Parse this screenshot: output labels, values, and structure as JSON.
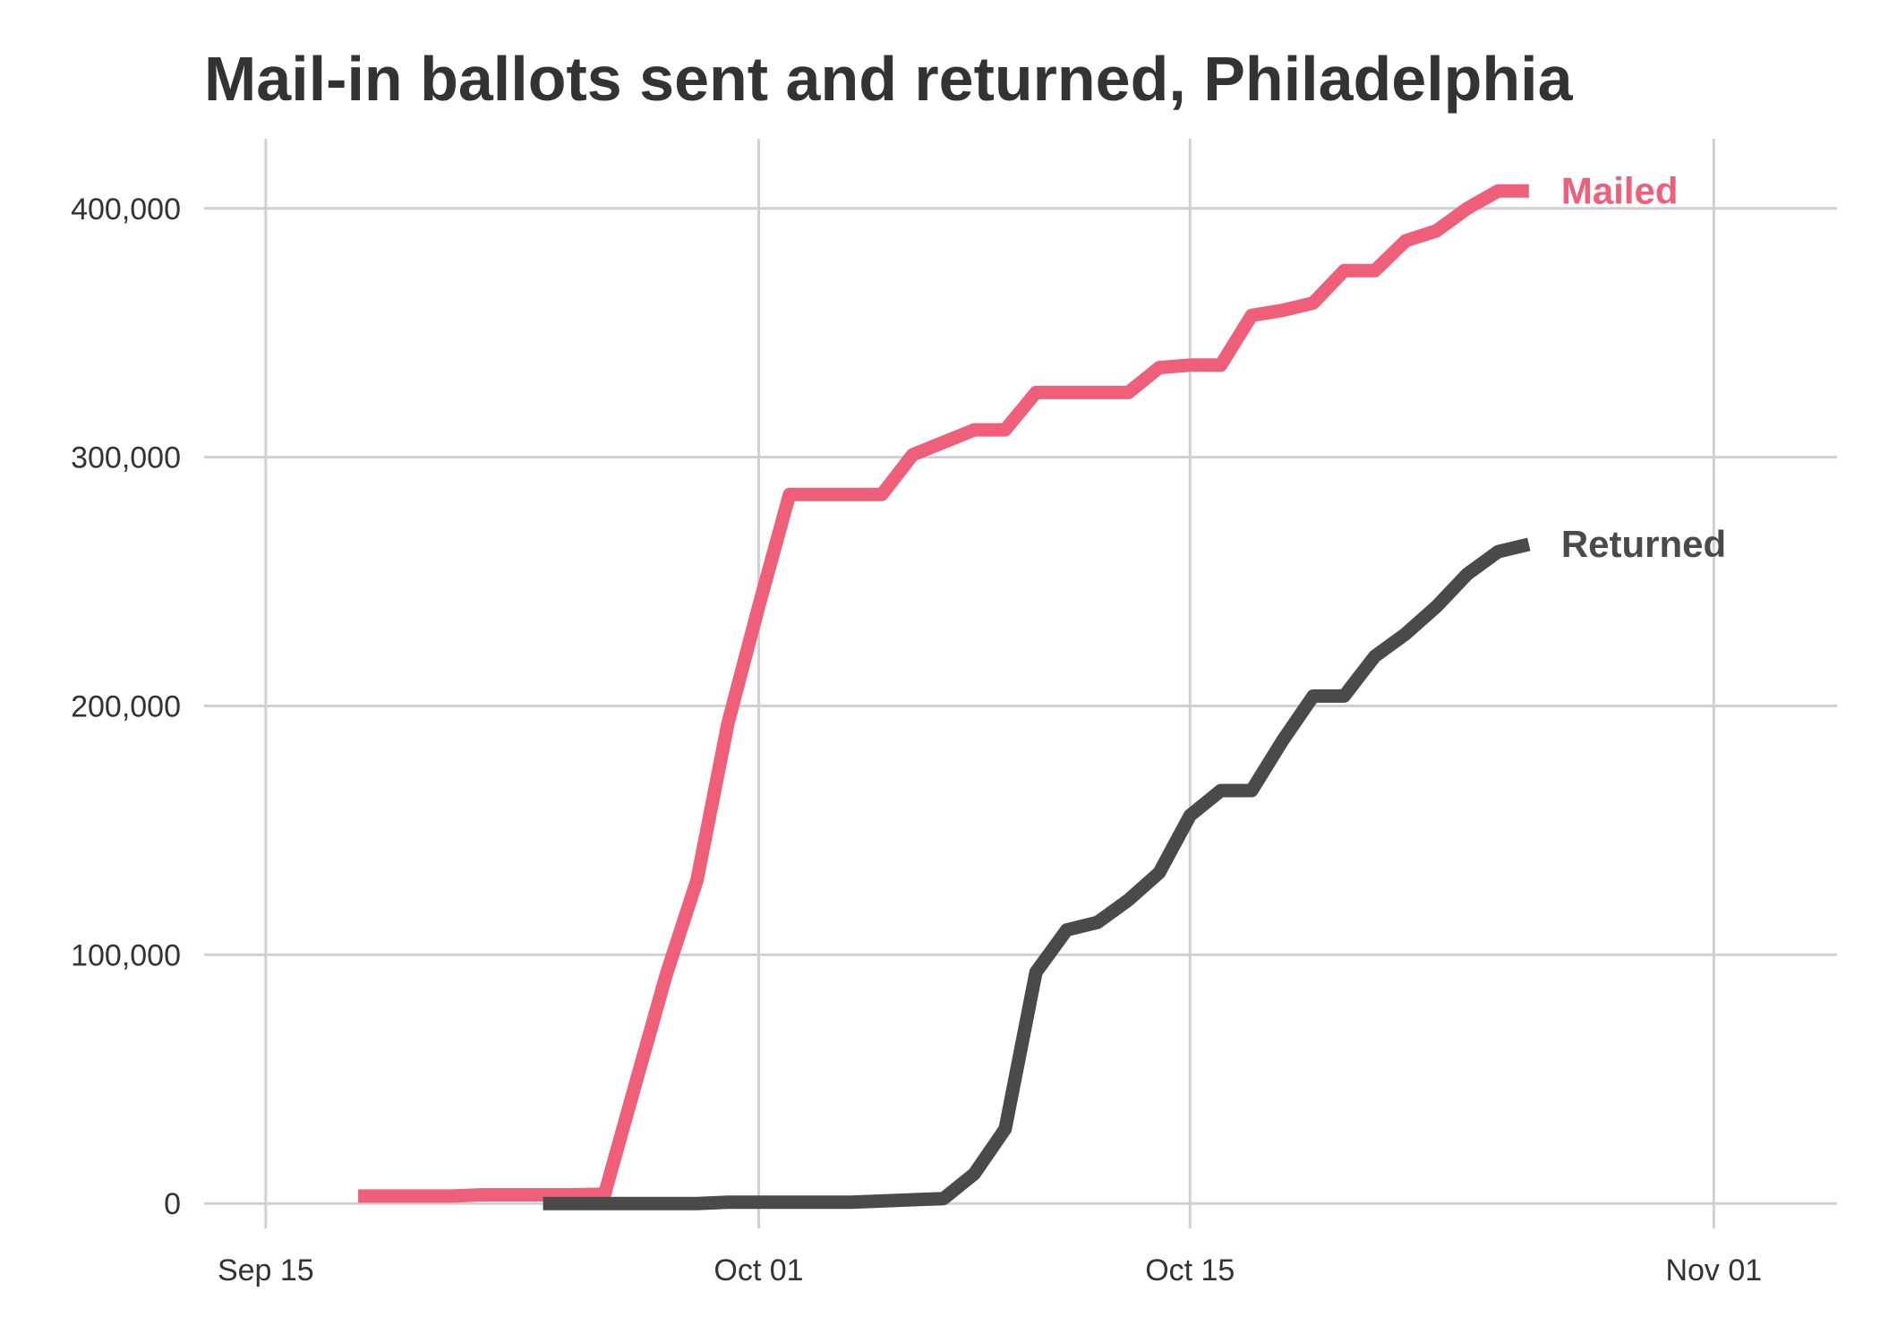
{
  "chart_data": {
    "type": "line",
    "title": "Mail-in ballots sent and returned, Philadelphia",
    "xlabel": "",
    "ylabel": "",
    "x_axis": {
      "type": "date",
      "range": [
        "2020-09-13",
        "2020-11-05"
      ],
      "ticks": [
        {
          "date": "2020-09-15",
          "label": "Sep 15"
        },
        {
          "date": "2020-10-01",
          "label": "Oct 01"
        },
        {
          "date": "2020-10-15",
          "label": "Oct 15"
        },
        {
          "date": "2020-11-01",
          "label": "Nov 01"
        }
      ]
    },
    "y_axis": {
      "range": [
        -10000,
        428000
      ],
      "ticks": [
        {
          "value": 0,
          "label": "0"
        },
        {
          "value": 100000,
          "label": "100,000"
        },
        {
          "value": 200000,
          "label": "200,000"
        },
        {
          "value": 300000,
          "label": "300,000"
        },
        {
          "value": 400000,
          "label": "400,000"
        }
      ]
    },
    "grid": true,
    "legend": "direct labels at line ends (right)",
    "series": [
      {
        "name": "Mailed",
        "color": "#EF5F7A",
        "points": [
          {
            "x": "2020-09-18",
            "y": 3000
          },
          {
            "x": "2020-09-19",
            "y": 3000
          },
          {
            "x": "2020-09-20",
            "y": 3000
          },
          {
            "x": "2020-09-21",
            "y": 3000
          },
          {
            "x": "2020-09-22",
            "y": 3500
          },
          {
            "x": "2020-09-23",
            "y": 3500
          },
          {
            "x": "2020-09-24",
            "y": 3500
          },
          {
            "x": "2020-09-25",
            "y": 3500
          },
          {
            "x": "2020-09-26",
            "y": 3800
          },
          {
            "x": "2020-09-27",
            "y": 48000
          },
          {
            "x": "2020-09-28",
            "y": 92000
          },
          {
            "x": "2020-09-29",
            "y": 130000
          },
          {
            "x": "2020-09-30",
            "y": 193000
          },
          {
            "x": "2020-10-01",
            "y": 240000
          },
          {
            "x": "2020-10-02",
            "y": 285000
          },
          {
            "x": "2020-10-03",
            "y": 285000
          },
          {
            "x": "2020-10-04",
            "y": 285000
          },
          {
            "x": "2020-10-05",
            "y": 285000
          },
          {
            "x": "2020-10-06",
            "y": 301000
          },
          {
            "x": "2020-10-07",
            "y": 306000
          },
          {
            "x": "2020-10-08",
            "y": 311000
          },
          {
            "x": "2020-10-09",
            "y": 311000
          },
          {
            "x": "2020-10-10",
            "y": 326000
          },
          {
            "x": "2020-10-11",
            "y": 326000
          },
          {
            "x": "2020-10-12",
            "y": 326000
          },
          {
            "x": "2020-10-13",
            "y": 326000
          },
          {
            "x": "2020-10-14",
            "y": 336000
          },
          {
            "x": "2020-10-15",
            "y": 337000
          },
          {
            "x": "2020-10-16",
            "y": 337000
          },
          {
            "x": "2020-10-17",
            "y": 357000
          },
          {
            "x": "2020-10-18",
            "y": 359000
          },
          {
            "x": "2020-10-19",
            "y": 362000
          },
          {
            "x": "2020-10-20",
            "y": 375000
          },
          {
            "x": "2020-10-21",
            "y": 375000
          },
          {
            "x": "2020-10-22",
            "y": 387000
          },
          {
            "x": "2020-10-23",
            "y": 391000
          },
          {
            "x": "2020-10-24",
            "y": 400000
          },
          {
            "x": "2020-10-25",
            "y": 407000
          },
          {
            "x": "2020-10-26",
            "y": 407000
          }
        ]
      },
      {
        "name": "Returned",
        "color": "#4A4A4A",
        "points": [
          {
            "x": "2020-09-24",
            "y": 0
          },
          {
            "x": "2020-09-25",
            "y": 0
          },
          {
            "x": "2020-09-26",
            "y": 0
          },
          {
            "x": "2020-09-27",
            "y": 0
          },
          {
            "x": "2020-09-28",
            "y": 0
          },
          {
            "x": "2020-09-29",
            "y": 0
          },
          {
            "x": "2020-09-30",
            "y": 500
          },
          {
            "x": "2020-10-01",
            "y": 500
          },
          {
            "x": "2020-10-02",
            "y": 500
          },
          {
            "x": "2020-10-03",
            "y": 500
          },
          {
            "x": "2020-10-04",
            "y": 500
          },
          {
            "x": "2020-10-05",
            "y": 1000
          },
          {
            "x": "2020-10-06",
            "y": 1500
          },
          {
            "x": "2020-10-07",
            "y": 2000
          },
          {
            "x": "2020-10-08",
            "y": 12000
          },
          {
            "x": "2020-10-09",
            "y": 30000
          },
          {
            "x": "2020-10-10",
            "y": 93000
          },
          {
            "x": "2020-10-11",
            "y": 110000
          },
          {
            "x": "2020-10-12",
            "y": 113000
          },
          {
            "x": "2020-10-13",
            "y": 122000
          },
          {
            "x": "2020-10-14",
            "y": 133000
          },
          {
            "x": "2020-10-15",
            "y": 156000
          },
          {
            "x": "2020-10-16",
            "y": 166000
          },
          {
            "x": "2020-10-17",
            "y": 166000
          },
          {
            "x": "2020-10-18",
            "y": 186000
          },
          {
            "x": "2020-10-19",
            "y": 204000
          },
          {
            "x": "2020-10-20",
            "y": 204000
          },
          {
            "x": "2020-10-21",
            "y": 220000
          },
          {
            "x": "2020-10-22",
            "y": 229000
          },
          {
            "x": "2020-10-23",
            "y": 240000
          },
          {
            "x": "2020-10-24",
            "y": 253000
          },
          {
            "x": "2020-10-25",
            "y": 262000
          },
          {
            "x": "2020-10-26",
            "y": 265000
          }
        ]
      }
    ]
  }
}
